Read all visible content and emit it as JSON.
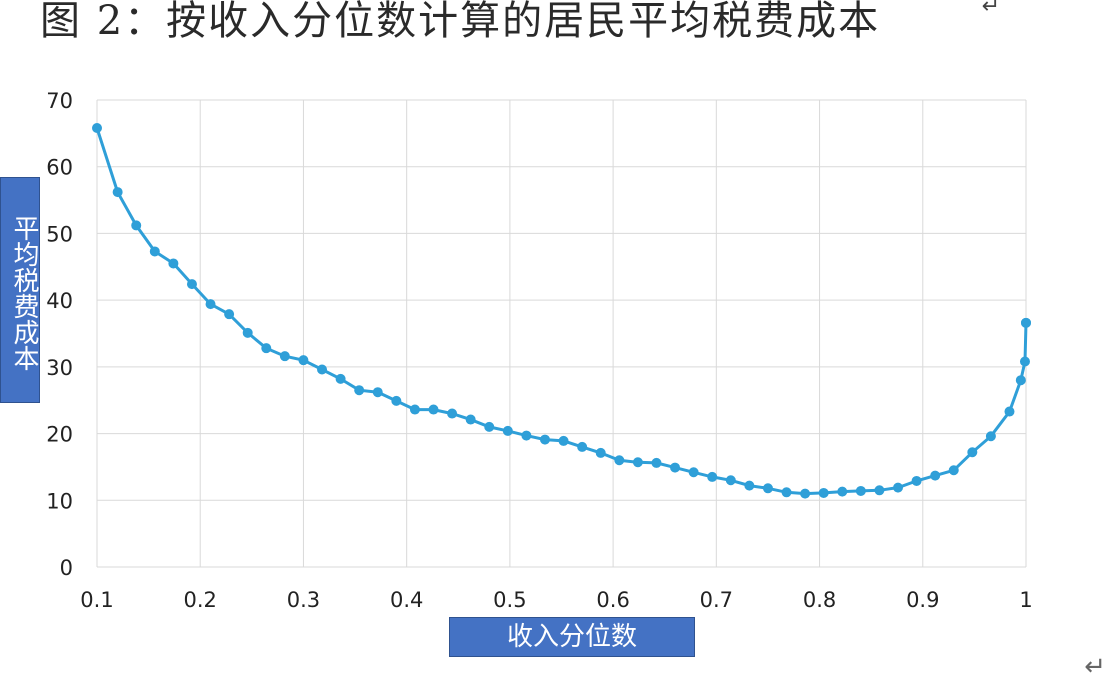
{
  "caption": "图 2：按收入分位数计算的居民平均税费成本",
  "top_glyph": "↵",
  "return_mark": "↵",
  "colors": {
    "line": "#2f9fd8",
    "marker": "#2f9fd8",
    "grid": "#d9d9d9",
    "label_box": "#4472c4"
  },
  "chart_data": {
    "type": "line",
    "xlabel": "收入分位数",
    "ylabel": "平均税费成本",
    "xlim": [
      0.1,
      1
    ],
    "ylim": [
      0,
      70
    ],
    "x_ticks": [
      "0.1",
      "0.2",
      "0.3",
      "0.4",
      "0.5",
      "0.6",
      "0.7",
      "0.8",
      "0.9",
      "1"
    ],
    "y_ticks": [
      "0",
      "10",
      "20",
      "30",
      "40",
      "50",
      "60",
      "70"
    ],
    "grid": true,
    "legend": "none",
    "series": [
      {
        "x": [
          0.1,
          0.12,
          0.138,
          0.156,
          0.174,
          0.192,
          0.21,
          0.228,
          0.246,
          0.264,
          0.282,
          0.3,
          0.318,
          0.336,
          0.354,
          0.372,
          0.39,
          0.408,
          0.426,
          0.444,
          0.462,
          0.48,
          0.498,
          0.516,
          0.534,
          0.552,
          0.57,
          0.588,
          0.606,
          0.624,
          0.642,
          0.66,
          0.678,
          0.696,
          0.714,
          0.732,
          0.75,
          0.768,
          0.786,
          0.804,
          0.822,
          0.84,
          0.858,
          0.876,
          0.894,
          0.912,
          0.93,
          0.948,
          0.966,
          0.984,
          0.995,
          0.999,
          1.0,
          1.0
        ],
        "y": [
          65.8,
          56.2,
          51.2,
          47.3,
          45.5,
          42.4,
          39.4,
          37.9,
          35.1,
          32.8,
          31.6,
          31.0,
          29.6,
          28.2,
          26.5,
          26.2,
          24.9,
          23.6,
          23.6,
          23.0,
          22.1,
          21.0,
          20.4,
          19.7,
          19.1,
          18.9,
          18.0,
          17.1,
          16.0,
          15.7,
          15.6,
          14.9,
          14.2,
          13.5,
          13.0,
          12.2,
          11.8,
          11.2,
          11.0,
          11.1,
          11.3,
          11.4,
          11.5,
          11.9,
          12.9,
          13.7,
          14.5,
          17.2,
          19.6,
          23.3,
          28.0,
          30.8,
          36.6,
          36.6
        ]
      }
    ]
  }
}
